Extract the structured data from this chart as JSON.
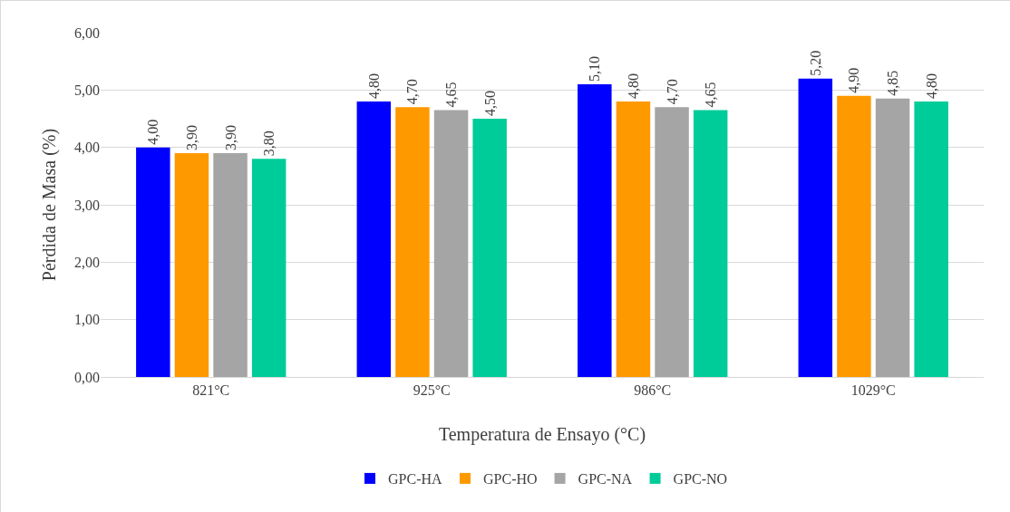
{
  "chart_data": {
    "type": "bar",
    "xlabel": "Temperatura de Ensayo (°C)",
    "ylabel": "Pérdida de Masa (%)",
    "categories": [
      "821°C",
      "925°C",
      "986°C",
      "1029°C"
    ],
    "series": [
      {
        "name": "GPC-HA",
        "color": "#0000ff",
        "values": [
          4.0,
          4.8,
          5.1,
          5.2
        ],
        "value_labels": [
          "4,00",
          "4,80",
          "5,10",
          "5,20"
        ]
      },
      {
        "name": "GPC-HO",
        "color": "#ff9900",
        "values": [
          3.9,
          4.7,
          4.8,
          4.9
        ],
        "value_labels": [
          "3,90",
          "4,70",
          "4,80",
          "4,90"
        ]
      },
      {
        "name": "GPC-NA",
        "color": "#a5a5a5",
        "values": [
          3.9,
          4.65,
          4.7,
          4.85
        ],
        "value_labels": [
          "3,90",
          "4,65",
          "4,70",
          "4,85"
        ]
      },
      {
        "name": "GPC-NO",
        "color": "#00cc99",
        "values": [
          3.8,
          4.5,
          4.65,
          4.8
        ],
        "value_labels": [
          "3,80",
          "4,50",
          "4,65",
          "4,80"
        ]
      }
    ],
    "ylim": [
      0,
      6
    ],
    "yticks": [
      {
        "value": 0,
        "label": "0,00"
      },
      {
        "value": 1,
        "label": "1,00"
      },
      {
        "value": 2,
        "label": "2,00"
      },
      {
        "value": 3,
        "label": "3,00"
      },
      {
        "value": 4,
        "label": "4,00"
      },
      {
        "value": 5,
        "label": "5,00"
      },
      {
        "value": 6,
        "label": "6,00"
      }
    ],
    "grid": "y",
    "legend": "bottom"
  }
}
